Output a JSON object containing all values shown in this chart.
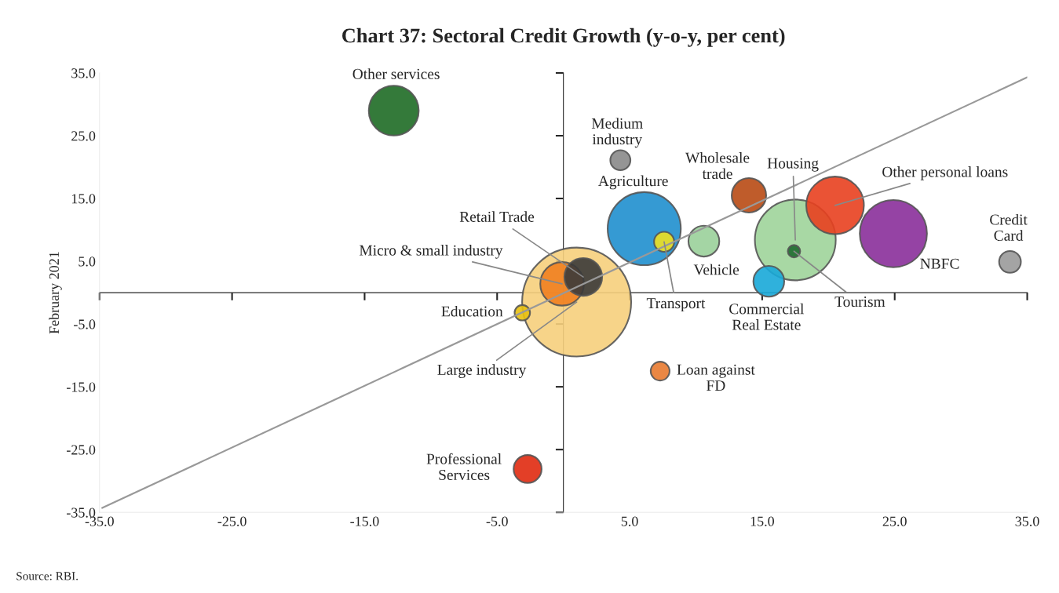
{
  "chart_data": {
    "type": "bubble",
    "title": "Chart 37: Sectoral Credit Growth (y-o-y, per cent)",
    "ylabel": "February 2021",
    "xlim": [
      -35,
      35
    ],
    "ylim": [
      -35,
      35
    ],
    "xticks": [
      {
        "value": -35,
        "label": "-35.0"
      },
      {
        "value": -25,
        "label": "-25.0"
      },
      {
        "value": -15,
        "label": "-15.0"
      },
      {
        "value": -5,
        "label": "-5.0"
      },
      {
        "value": 5,
        "label": "5.0"
      },
      {
        "value": 15,
        "label": "15.0"
      },
      {
        "value": 25,
        "label": "25.0"
      },
      {
        "value": 35,
        "label": "35.0"
      }
    ],
    "yticks": [
      {
        "value": -35,
        "label": "-35.0"
      },
      {
        "value": -25,
        "label": "-25.0"
      },
      {
        "value": -15,
        "label": "-15.0"
      },
      {
        "value": -5,
        "label": "-5.0"
      },
      {
        "value": 5,
        "label": "5.0"
      },
      {
        "value": 15,
        "label": "15.0"
      },
      {
        "value": 25,
        "label": "25.0"
      },
      {
        "value": 35,
        "label": "35.0"
      }
    ],
    "grid": false,
    "series": [
      {
        "type": "bubble",
        "x": [
          1.0,
          17.5,
          6.1,
          24.9,
          20.5,
          -12.8,
          -0.1,
          1.5,
          14.0,
          10.6,
          15.5,
          -2.7,
          33.7,
          4.3,
          7.6,
          7.3,
          -3.1,
          17.4
        ],
        "values": [
          -1.5,
          8.4,
          10.2,
          9.4,
          13.9,
          29.0,
          1.4,
          2.5,
          15.5,
          8.2,
          1.8,
          -28.1,
          4.9,
          21.1,
          8.1,
          -12.5,
          -3.2,
          6.6
        ],
        "sizes": [
          1,
          0.55,
          0.45,
          0.38,
          0.28,
          0.21,
          0.16,
          0.12,
          0.1,
          0.08,
          0.08,
          0.066,
          0.04,
          0.034,
          0.034,
          0.03,
          0.02,
          0.013
        ],
        "colors": [
          "#f6cf7c",
          "#9fd49a",
          "#1f8fce",
          "#8a2f9a",
          "#e8401f",
          "#1e6b25",
          "#f08020",
          "#3a3a3a",
          "#b84a14",
          "#9ad09a",
          "#18a8d8",
          "#e02a10",
          "#9a9a9a",
          "#8a8a8a",
          "#f0e020",
          "#e87a30",
          "#e8c010",
          "#1f6b30"
        ]
      },
      {
        "type": "line",
        "x": [
          -34.8,
          35
        ],
        "values": [
          -34.3,
          34.3
        ],
        "color": "#999999"
      }
    ],
    "annotations": [
      {
        "text": "Large industry",
        "x": 1.0,
        "y": -1.5
      },
      {
        "text": "Housing",
        "x": 17.5,
        "y": 8.4
      },
      {
        "text": "Agriculture",
        "x": 6.1,
        "y": 10.2
      },
      {
        "text": "NBFC",
        "x": 24.9,
        "y": 9.4
      },
      {
        "text": "Other personal loans",
        "x": 20.5,
        "y": 13.9
      },
      {
        "text": "Other services",
        "x": -12.8,
        "y": 29.0
      },
      {
        "text": "Micro & small industry",
        "x": -0.1,
        "y": 1.4
      },
      {
        "text": "Retail Trade",
        "x": 1.5,
        "y": 2.5
      },
      {
        "text": "Wholesale\ntrade",
        "x": 14.0,
        "y": 15.5
      },
      {
        "text": "Vehicle",
        "x": 10.6,
        "y": 8.2
      },
      {
        "text": "Commercial\nReal Estate",
        "x": 15.5,
        "y": 1.8
      },
      {
        "text": "Professional\nServices",
        "x": -2.7,
        "y": -28.1
      },
      {
        "text": "Credit\nCard",
        "x": 33.7,
        "y": 4.9
      },
      {
        "text": "Medium\nindustry",
        "x": 4.3,
        "y": 21.1
      },
      {
        "text": "Transport",
        "x": 7.6,
        "y": 8.1
      },
      {
        "text": "Loan against\nFD",
        "x": 7.3,
        "y": -12.5
      },
      {
        "text": "Education",
        "x": -3.1,
        "y": -3.2
      },
      {
        "text": "Tourism",
        "x": 17.4,
        "y": 6.6
      },
      "Source: RBI."
    ]
  }
}
